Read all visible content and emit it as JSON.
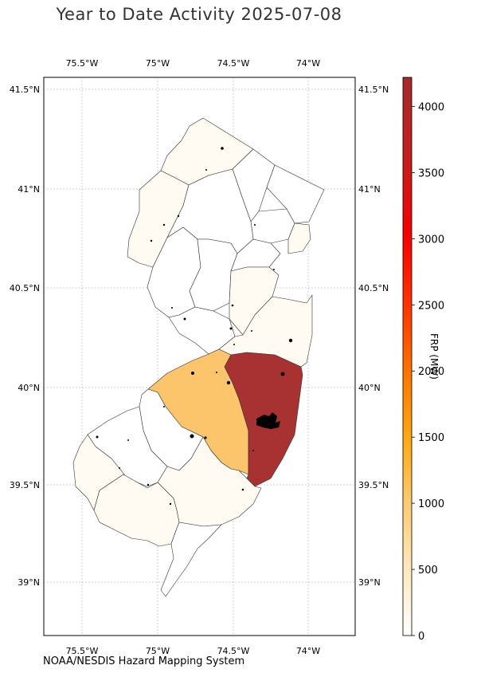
{
  "title": "Year to Date Activity 2025-07-08",
  "footer": "NOAA/NESDIS Hazard Mapping System",
  "map": {
    "lon_labels": [
      "75.5°W",
      "75°W",
      "74.5°W",
      "74°W"
    ],
    "lat_labels": [
      "41.5°N",
      "41°N",
      "40.5°N",
      "40°N",
      "39.5°N",
      "39°N"
    ]
  },
  "colorbar": {
    "label": "FRP (MW)",
    "min": 0,
    "max": 4220,
    "ticks": [
      "0",
      "500",
      "1000",
      "1500",
      "2000",
      "2500",
      "3000",
      "3500",
      "4000"
    ],
    "colors": [
      "#fffaf2",
      "#fde6b6",
      "#fdc872",
      "#fdae1c",
      "#fe7b00",
      "#ff2a00",
      "#f40000",
      "#c02222",
      "#a52a2a"
    ]
  },
  "legend_colors": {
    "low": "#fffaf2",
    "mid": "#fdc56b",
    "high": "#a83232"
  }
}
